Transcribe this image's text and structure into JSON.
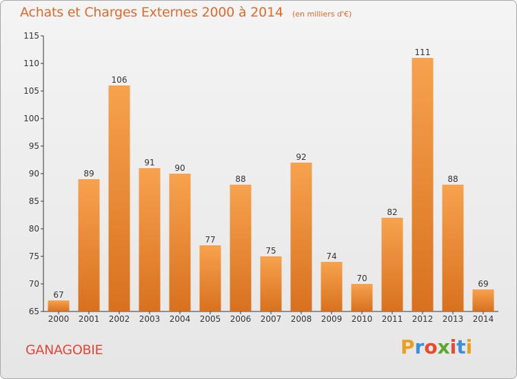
{
  "title": "Achats et Charges Externes 2000 à 2014",
  "subtitle": "(en milliers d'€)",
  "commune": "GANAGOBIE",
  "brand": {
    "letters": [
      "P",
      "r",
      "o",
      "x",
      "i",
      "t",
      "i"
    ],
    "colors": [
      "#e8a020",
      "#3c8fd8",
      "#e84a2a",
      "#5aa832",
      "#e84a2a",
      "#3c8fd8",
      "#e8a020"
    ]
  },
  "colors": {
    "bar_top": "#f7a24e",
    "bar_bottom": "#d8711f",
    "title": "#e06a2c",
    "axis": "#333333"
  },
  "chart_data": {
    "type": "bar",
    "title": "Achats et Charges Externes 2000 à 2014",
    "subtitle": "(en milliers d'€)",
    "categories": [
      "2000",
      "2001",
      "2002",
      "2003",
      "2004",
      "2005",
      "2006",
      "2007",
      "2008",
      "2009",
      "2010",
      "2011",
      "2012",
      "2013",
      "2014"
    ],
    "values": [
      67,
      89,
      106,
      91,
      90,
      77,
      88,
      75,
      92,
      74,
      70,
      82,
      111,
      88,
      69
    ],
    "ylim": [
      65,
      115
    ],
    "yticks": [
      65,
      70,
      75,
      80,
      85,
      90,
      95,
      100,
      105,
      110,
      115
    ],
    "xlabel": "",
    "ylabel": "",
    "grid": false,
    "legend": "none"
  }
}
